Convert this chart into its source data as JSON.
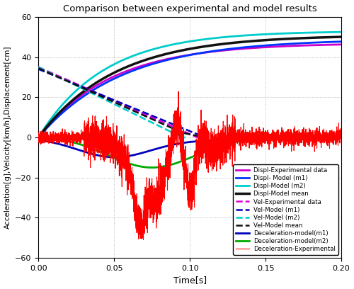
{
  "title": "Comparison between experimental and model results",
  "xlabel": "Time[s]",
  "ylabel": "Acceleration[g],Velocity[km/h],Displacement[cm]",
  "xlim": [
    0,
    0.2
  ],
  "ylim": [
    -60,
    60
  ],
  "xticks": [
    0,
    0.05,
    0.1,
    0.15,
    0.2
  ],
  "yticks": [
    -60,
    -40,
    -20,
    0,
    20,
    40,
    60
  ],
  "figsize": [
    5.0,
    4.08
  ],
  "dpi": 100,
  "background": "#ffffff",
  "series": {
    "decel_exp": {
      "color": "#ff0000",
      "lw": 0.8,
      "ls": "-",
      "label": "Deceleration-Experimental"
    },
    "decel_m1": {
      "color": "#0000bb",
      "lw": 2.0,
      "ls": "-",
      "label": "Deceleration-model(m1)"
    },
    "decel_m2": {
      "color": "#00aa00",
      "lw": 2.0,
      "ls": "-",
      "label": "Deceleration-model(m2)"
    },
    "vel_exp": {
      "color": "#dd00dd",
      "lw": 1.8,
      "ls": "--",
      "label": "Vel-Experimental data"
    },
    "displ_exp": {
      "color": "#cc00cc",
      "lw": 2.0,
      "ls": "-",
      "label": "Displ-Experimental data"
    },
    "vel_m1": {
      "color": "#0000bb",
      "lw": 1.8,
      "ls": "--",
      "label": "Vel-Model (m1)"
    },
    "displ_m1": {
      "color": "#0033ff",
      "lw": 2.0,
      "ls": "-",
      "label": "Displ- Model (m1)"
    },
    "vel_m2": {
      "color": "#00cccc",
      "lw": 1.8,
      "ls": "--",
      "label": "Vel-Model (m2)"
    },
    "displ_m2": {
      "color": "#00cccc",
      "lw": 2.0,
      "ls": "-",
      "label": "Displ-Model (m2)"
    },
    "vel_mean": {
      "color": "#111111",
      "lw": 1.8,
      "ls": "--",
      "label": "Vel-Model mean"
    },
    "displ_mean": {
      "color": "#111111",
      "lw": 2.5,
      "ls": "-",
      "label": "Displ-Model mean"
    }
  },
  "legend": {
    "loc": "lower right",
    "fontsize": 6.2,
    "handlelength": 2.2,
    "labelspacing": 0.25,
    "borderpad": 0.4
  }
}
